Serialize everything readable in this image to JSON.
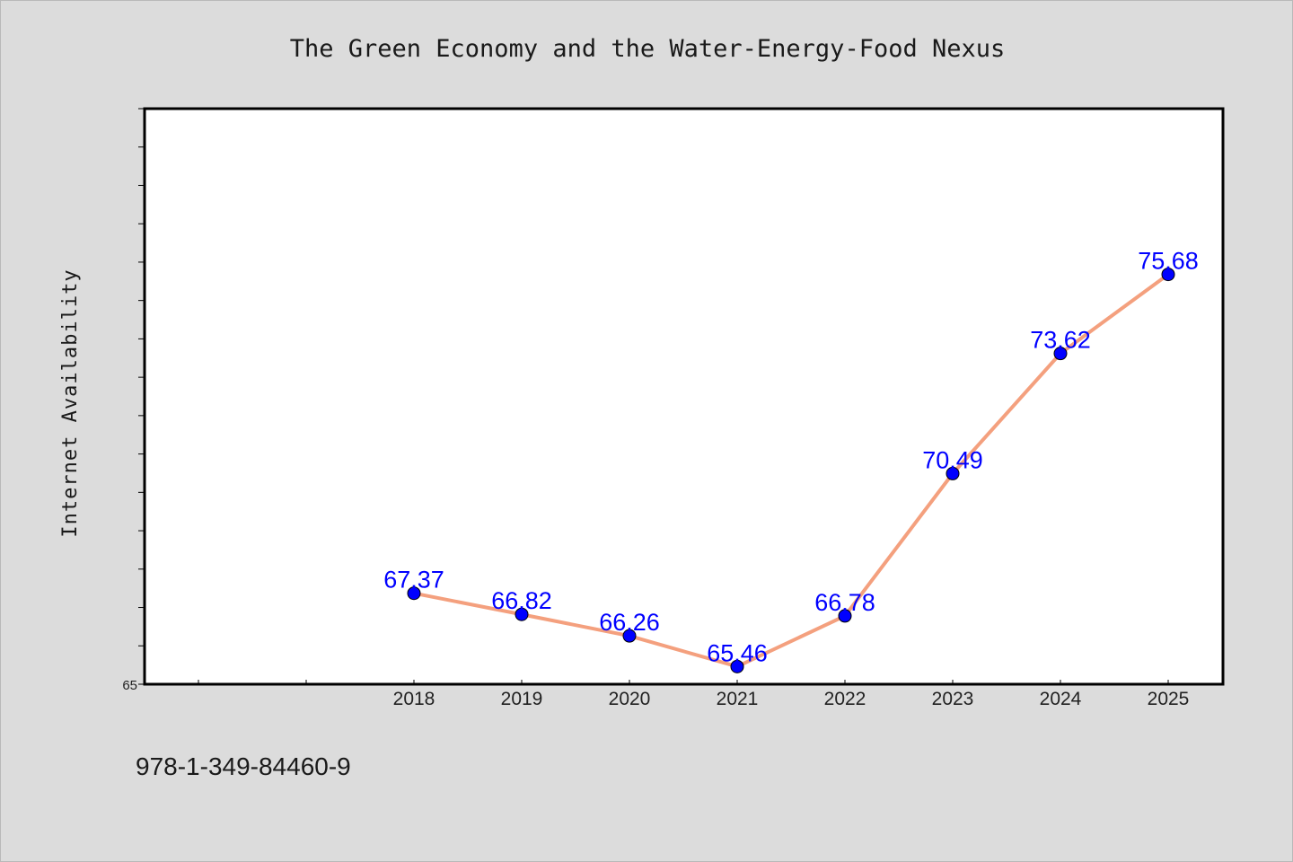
{
  "chart_data": {
    "type": "line",
    "title": "The Green Economy and the Water-Energy-Food Nexus",
    "xlabel": "",
    "ylabel": "Internet Availability",
    "categories": [
      "2018",
      "2019",
      "2020",
      "2021",
      "2022",
      "2023",
      "2024",
      "2025"
    ],
    "series": [
      {
        "values": [
          67.37,
          66.82,
          66.26,
          65.46,
          66.78,
          70.49,
          73.62,
          75.68
        ],
        "labels": [
          "67.37",
          "66.82",
          "66.26",
          "65.46",
          "66.78",
          "70.49",
          "73.62",
          "75.68"
        ]
      }
    ],
    "ylim": [
      65,
      80
    ],
    "yticks_labeled": [
      "65"
    ],
    "grid": false,
    "legend": "none",
    "colors": {
      "line": "#f4a07e",
      "marker": "#0000ff",
      "label": "#0000ff",
      "background": "#dcdcdc",
      "plot_background": "#ffffff"
    }
  },
  "footer": {
    "isbn": "978-1-349-84460-9"
  }
}
